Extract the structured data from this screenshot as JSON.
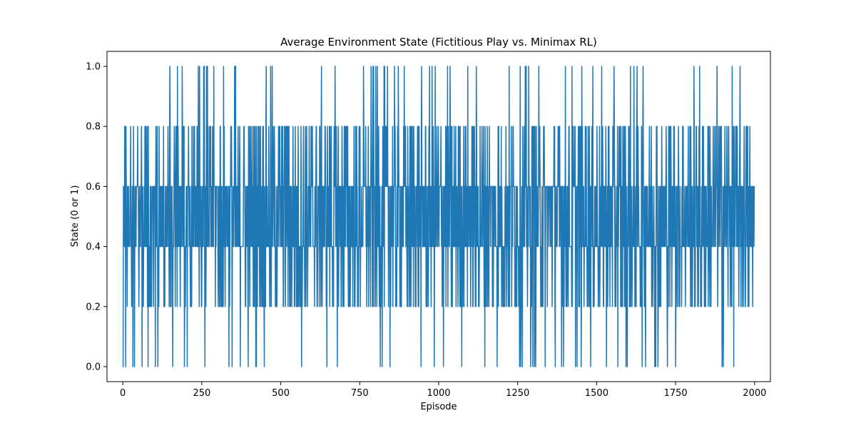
{
  "chart_data": {
    "type": "line",
    "title": "Average Environment State (Fictitious Play vs. Minimax RL)",
    "xlabel": "Episode",
    "ylabel": "State (0 or 1)",
    "xlim": [
      -50,
      2050
    ],
    "ylim": [
      -0.05,
      1.05
    ],
    "x_ticks": [
      0,
      250,
      500,
      750,
      1000,
      1250,
      1500,
      1750,
      2000
    ],
    "x_tick_labels": [
      "0",
      "250",
      "500",
      "750",
      "1000",
      "1250",
      "1500",
      "1750",
      "2000"
    ],
    "y_ticks": [
      0.0,
      0.2,
      0.4,
      0.6,
      0.8,
      1.0
    ],
    "y_tick_labels": [
      "0.0",
      "0.2",
      "0.4",
      "0.6",
      "0.8",
      "1.0"
    ],
    "grid": false,
    "legend": "none",
    "line_color": "#1f77b4",
    "series": [
      {
        "x_start": 0,
        "x_step": 1,
        "values_note": "",
        "values": []
      }
    ]
  }
}
